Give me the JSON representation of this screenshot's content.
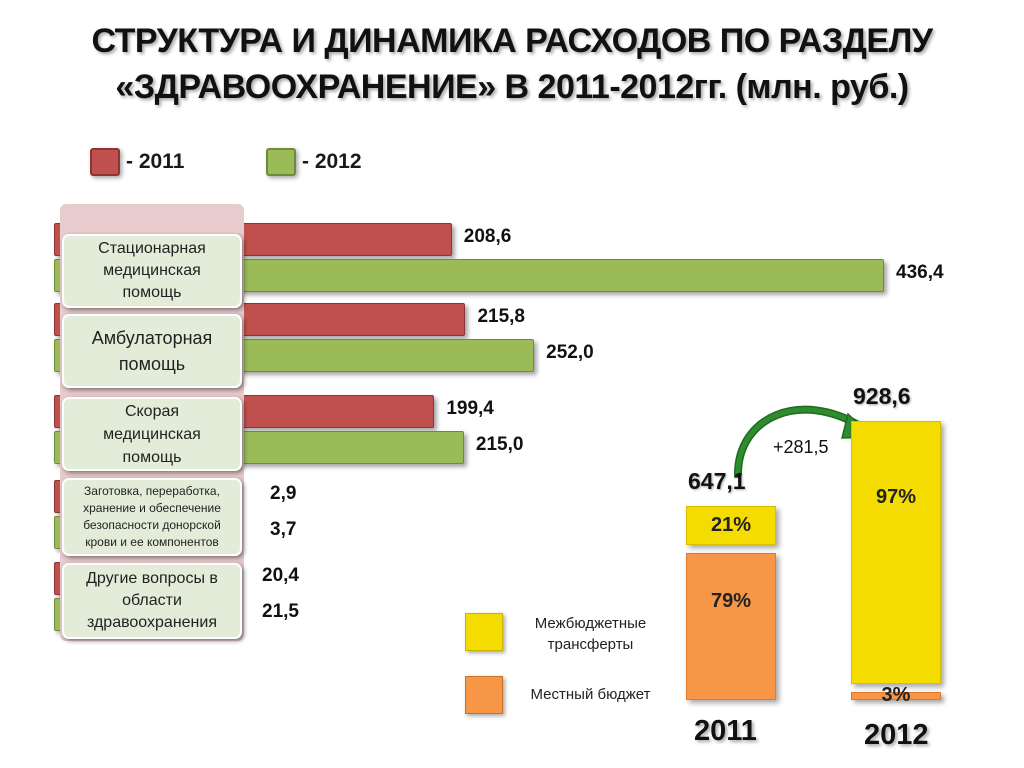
{
  "title_line1": "СТРУКТУРА И ДИНАМИКА РАСХОДОВ ПО РАЗДЕЛУ",
  "title_line2": "«ЗДРАВООХРАНЕНИЕ» В 2011-2012гг. (млн. руб.)",
  "legend": {
    "y2011": "- 2011",
    "y2012": "- 2012"
  },
  "colors": {
    "y2011": "#c0504d",
    "y2012": "#9bbb59",
    "transfers": "#f5dc00",
    "local_budget": "#f79646"
  },
  "chart_data": [
    {
      "type": "bar",
      "orientation": "horizontal",
      "categories": [
        "Стационарная медицинская помощь",
        "Амбулаторная помощь",
        "Скорая медицинская помощь",
        "Заготовка, переработка, хранение и обеспечение безопасности донорской крови и ее компонентов",
        "Другие вопросы в области здравоохранения"
      ],
      "category_lines": [
        [
          "Стационарная",
          "медицинская",
          "помощь"
        ],
        [
          "Амбулаторная",
          "помощь"
        ],
        [
          "Скорая",
          "медицинская",
          "помощь"
        ],
        [
          "Заготовка, переработка,",
          "хранение и обеспечение",
          "безопасности донорской",
          "крови и ее компонентов"
        ],
        [
          "Другие вопросы в",
          "области",
          "здравоохранения"
        ]
      ],
      "series": [
        {
          "name": "2011",
          "values": [
            208.6,
            215.8,
            199.4,
            2.9,
            20.4
          ],
          "labels": [
            "208,6",
            "215,8",
            "199,4",
            "2,9",
            "20,4"
          ]
        },
        {
          "name": "2012",
          "values": [
            436.4,
            252.0,
            215.0,
            3.7,
            21.5
          ],
          "labels": [
            "436,4",
            "252,0",
            "215,0",
            "3,7",
            "21,5"
          ]
        }
      ],
      "xlim": [
        0,
        436.4
      ]
    },
    {
      "type": "bar",
      "stacked": true,
      "normalized": true,
      "categories": [
        "2011",
        "2012"
      ],
      "totals": [
        647.1,
        928.6
      ],
      "total_labels": [
        "647,1",
        "928,6"
      ],
      "series": [
        {
          "name": "Местный бюджет",
          "values": [
            79,
            3
          ],
          "labels": [
            "79%",
            "3%"
          ]
        },
        {
          "name": "Межбюджетные трансферты",
          "values": [
            21,
            97
          ],
          "labels": [
            "21%",
            "97%"
          ]
        }
      ],
      "annotation": "+281,5"
    }
  ],
  "side_legend": {
    "transfers": "Межбюджетные трансферты",
    "transfers_lines": [
      "Межбюджетные",
      "трансферты"
    ],
    "local_budget": "Местный бюджет"
  }
}
